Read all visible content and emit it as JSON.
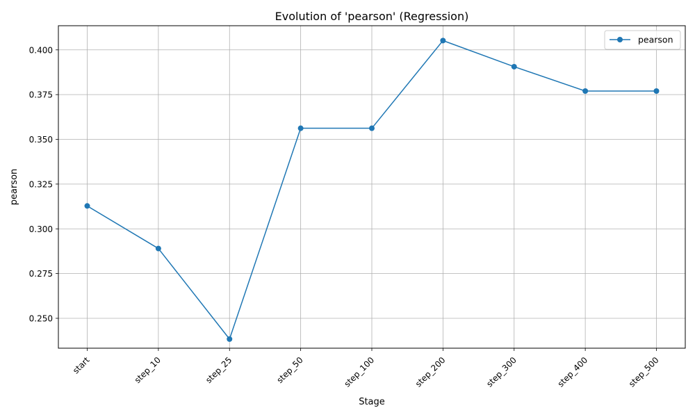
{
  "chart_data": {
    "type": "line",
    "title": "Evolution of 'pearson' (Regression)",
    "xlabel": "Stage",
    "ylabel": "pearson",
    "categories": [
      "start",
      "step_10",
      "step_25",
      "step_50",
      "step_100",
      "step_200",
      "step_300",
      "step_400",
      "step_500"
    ],
    "series": [
      {
        "name": "pearson",
        "color": "#1f77b4",
        "marker": "circle",
        "values": [
          0.3128,
          0.289,
          0.2384,
          0.3562,
          0.3562,
          0.4052,
          0.3906,
          0.377,
          0.377
        ]
      }
    ],
    "ylim": [
      0.2333,
      0.4135
    ],
    "yticks": [
      "0.250",
      "0.275",
      "0.300",
      "0.325",
      "0.350",
      "0.375",
      "0.400"
    ],
    "grid": true,
    "legend_position": "top-right",
    "x_tick_rotation": 45
  }
}
